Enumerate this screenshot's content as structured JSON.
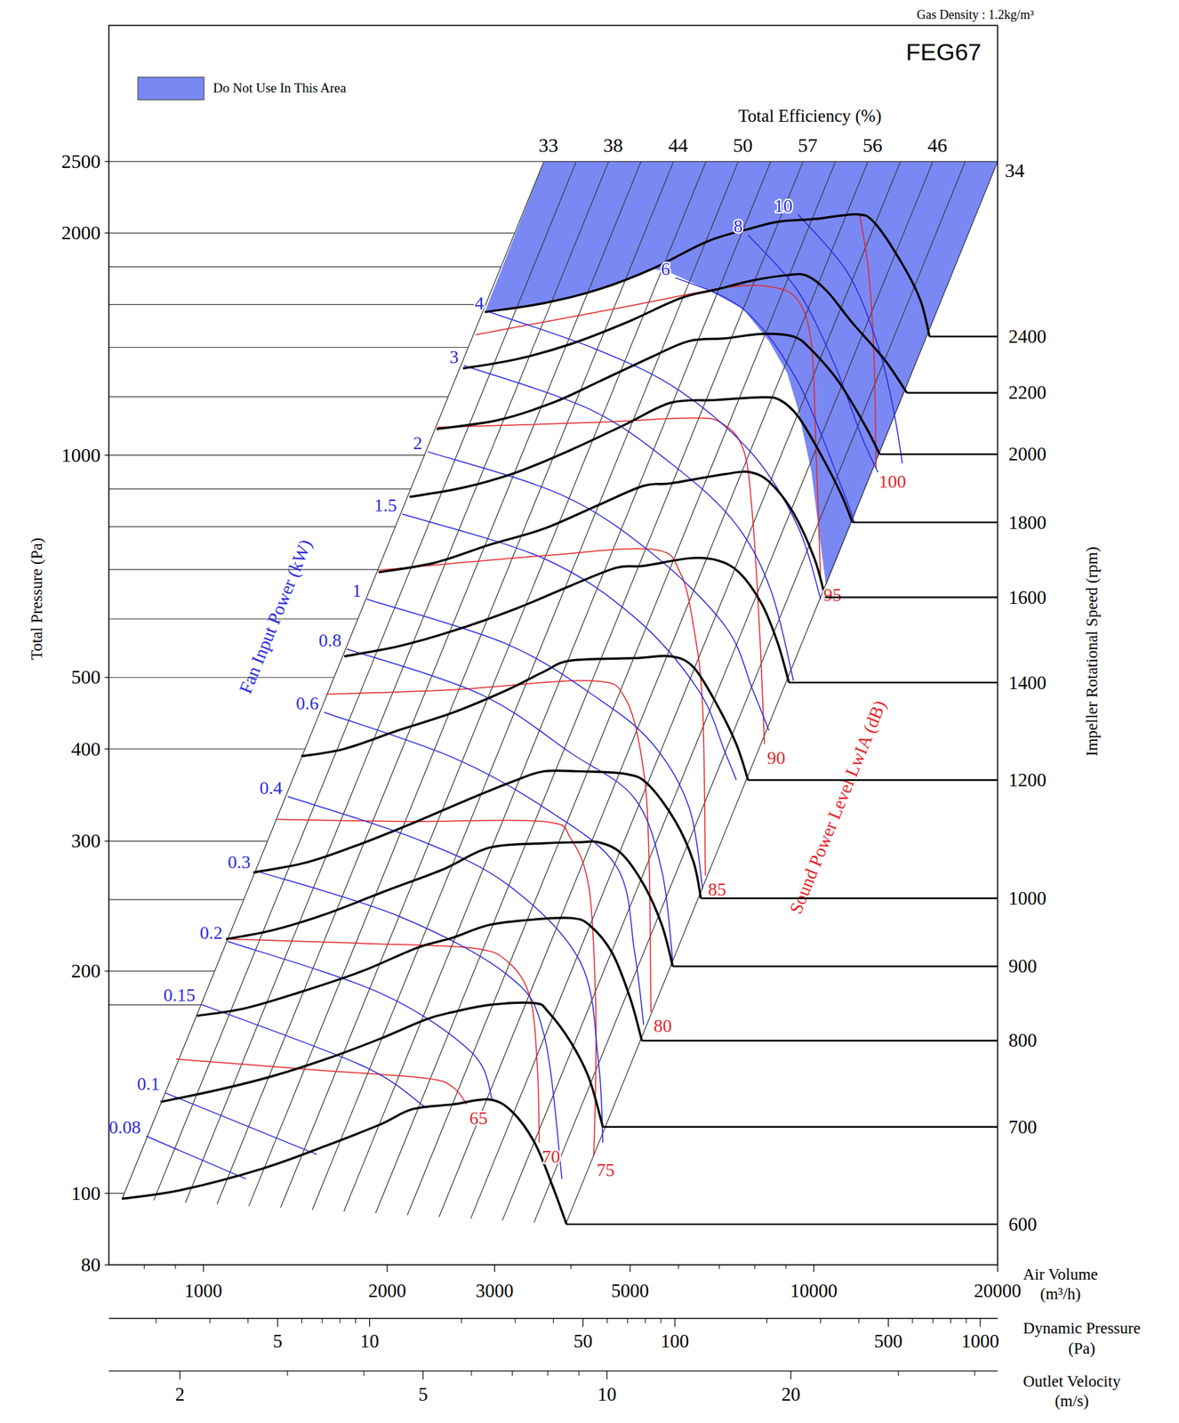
{
  "chart_data": {
    "type": "line",
    "title": "FEG67",
    "subtitle": "Gas Density : 1.2kg/m³",
    "x_label": "Air Volume (m³/h)",
    "y_label": "Total Pressure (Pa)",
    "y2_label": "Impeller Rotational Speed (rpm)",
    "log": true,
    "grid": true,
    "legend": "top-left",
    "xlim": [
      700,
      20000
    ],
    "xticks": [
      1000,
      2000,
      3000,
      5000,
      10000,
      20000
    ],
    "xminor": [
      800,
      900,
      4000,
      6000,
      7000,
      8000,
      9000
    ],
    "ylim": [
      80,
      2500
    ],
    "yticks": [
      80,
      100,
      200,
      300,
      400,
      500,
      1000,
      2000,
      2500
    ],
    "ygrid": [
      180,
      250,
      600,
      700,
      800,
      900,
      1200,
      1400,
      1600,
      1800
    ],
    "restricted_area": {
      "name": "Do Not Use In This Area",
      "color": "#6b7bf3",
      "x": [
        3611,
        20000,
        10474,
        10261,
        9915,
        9419,
        9040,
        8441,
        7670,
        6688,
        5833,
        5446,
        4436,
        3611,
        2891
      ],
      "y": [
        2500,
        2500,
        666,
        756,
        948,
        1155,
        1293,
        1428,
        1576,
        1677,
        1765,
        1790,
        1677,
        1607,
        1563
      ]
    },
    "efficiency_lines": {
      "label": "Total Efficiency (%)",
      "lines": [
        {
          "value": 33,
          "x": [
            3611,
            736
          ],
          "y": [
            2500,
            98.3
          ]
        },
        {
          "value": null,
          "x": [
            4081,
            829
          ],
          "y": [
            2500,
            97.8
          ]
        },
        {
          "value": 38,
          "x": [
            4611,
            935
          ],
          "y": [
            2500,
            97.2
          ]
        },
        {
          "value": null,
          "x": [
            5211,
            1053
          ],
          "y": [
            2500,
            96.7
          ]
        },
        {
          "value": 44,
          "x": [
            5890,
            1187
          ],
          "y": [
            2500,
            96.1
          ]
        },
        {
          "value": null,
          "x": [
            6657,
            1338
          ],
          "y": [
            2500,
            95.6
          ]
        },
        {
          "value": 50,
          "x": [
            7520,
            1508
          ],
          "y": [
            2500,
            95.0
          ]
        },
        {
          "value": null,
          "x": [
            8500,
            1699
          ],
          "y": [
            2500,
            94.5
          ]
        },
        {
          "value": 57,
          "x": [
            9603,
            1915
          ],
          "y": [
            2500,
            94.0
          ]
        },
        {
          "value": null,
          "x": [
            10850,
            2158
          ],
          "y": [
            2500,
            93.4
          ]
        },
        {
          "value": 56,
          "x": [
            12266,
            2432
          ],
          "y": [
            2500,
            92.9
          ]
        },
        {
          "value": null,
          "x": [
            13864,
            2741
          ],
          "y": [
            2500,
            92.4
          ]
        },
        {
          "value": 46,
          "x": [
            15666,
            3089
          ],
          "y": [
            2500,
            91.9
          ]
        },
        {
          "value": null,
          "x": [
            17703,
            3480
          ],
          "y": [
            2500,
            91.3
          ]
        },
        {
          "value": 34,
          "x": [
            20000,
            3922
          ],
          "y": [
            2500,
            90.8
          ]
        }
      ]
    },
    "series": [
      {
        "rpm": 600,
        "color": "#000000",
        "x": [
          735,
          918,
          1249,
          1588,
          1950,
          2198,
          2564,
          2941,
          3204,
          3490,
          3737,
          3934
        ],
        "values": [
          98.3,
          101,
          108,
          116,
          124,
          130,
          132,
          134,
          129,
          117,
          102,
          90.8
        ]
      },
      {
        "rpm": 700,
        "color": "#000000",
        "x": [
          851,
          1053,
          1293,
          1588,
          1950,
          2314,
          2564,
          2941,
          3490,
          3674,
          4002,
          4285,
          4512
        ],
        "values": [
          133,
          138,
          144,
          152,
          162,
          172,
          176,
          180,
          181,
          176,
          160,
          143,
          123
        ]
      },
      {
        "rpm": 800,
        "color": "#000000",
        "x": [
          976,
          1167,
          1432,
          1821,
          2236,
          2564,
          2941,
          3490,
          4002,
          4285,
          4669,
          5000,
          5227
        ],
        "values": [
          174,
          178,
          187,
          200,
          215,
          222,
          231,
          235,
          236,
          231,
          212,
          184,
          161
        ]
      },
      {
        "rpm": 900,
        "color": "#000000",
        "x": [
          1089,
          1293,
          1588,
          2017,
          2478,
          2941,
          3611,
          4141,
          4436,
          4831,
          5263,
          5636,
          5874
        ],
        "values": [
          221,
          227,
          239,
          258,
          275,
          294,
          298,
          299,
          299,
          289,
          262,
          231,
          203
        ]
      },
      {
        "rpm": 1000,
        "color": "#000000",
        "x": [
          1207,
          1483,
          1821,
          2236,
          2746,
          3258,
          3611,
          4141,
          4915,
          5354,
          5934,
          6353,
          6530
        ],
        "values": [
          272,
          281,
          298,
          319,
          343,
          363,
          373,
          373,
          370,
          358,
          319,
          281,
          251
        ]
      },
      {
        "rpm": 1200,
        "color": "#000000",
        "x": [
          1447,
          1701,
          2088,
          2564,
          3149,
          3611,
          4002,
          5086,
          5833,
          6353,
          6921,
          7464,
          7803
        ],
        "values": [
          391,
          400,
          424,
          448,
          481,
          509,
          527,
          531,
          534,
          516,
          461,
          406,
          363
        ]
      },
      {
        "rpm": 1400,
        "color": "#000000",
        "x": [
          1701,
          2088,
          2564,
          3258,
          4002,
          4750,
          5263,
          6247,
          6921,
          7542,
          8214,
          8737,
          9103
        ],
        "values": [
          534,
          551,
          578,
          620,
          666,
          704,
          708,
          725,
          721,
          694,
          629,
          555,
          492
        ]
      },
      {
        "rpm": 1600,
        "color": "#000000",
        "x": [
          1936,
          2394,
          2941,
          3611,
          4436,
          5263,
          5833,
          7163,
          7884,
          8500,
          9261,
          10018,
          10437
        ],
        "values": [
          694,
          715,
          756,
          795,
          856,
          909,
          916,
          943,
          948,
          916,
          835,
          725,
          642
        ]
      },
      {
        "rpm": 1800,
        "color": "#000000",
        "x": [
          2176,
          2653,
          3258,
          4002,
          4915,
          5833,
          6921,
          8214,
          8797,
          9419,
          10261,
          11100,
          11564
        ],
        "values": [
          878,
          903,
          948,
          1017,
          1101,
          1178,
          1188,
          1198,
          1188,
          1129,
          1003,
          883,
          811
        ]
      },
      {
        "rpm": 2000,
        "color": "#000000",
        "x": [
          2411,
          3043,
          3737,
          4436,
          5446,
          6247,
          7163,
          8214,
          9261,
          9915,
          10987,
          12175,
          12818
        ],
        "values": [
          1085,
          1116,
          1178,
          1257,
          1361,
          1428,
          1440,
          1460,
          1448,
          1388,
          1257,
          1091,
          1003
        ]
      },
      {
        "rpm": 2200,
        "color": "#000000",
        "x": [
          2662,
          3258,
          4002,
          4915,
          6037,
          6921,
          7939,
          9103,
          9748,
          10510,
          11564,
          13039,
          14206
        ],
        "values": [
          1311,
          1349,
          1415,
          1511,
          1631,
          1677,
          1725,
          1755,
          1750,
          1668,
          1511,
          1349,
          1215
        ]
      },
      {
        "rpm": 2400,
        "color": "#000000",
        "x": [
          2891,
          3611,
          4436,
          5446,
          6688,
          7939,
          8797,
          10086,
          11764,
          12600,
          13964,
          14951,
          15473
        ],
        "values": [
          1563,
          1607,
          1677,
          1790,
          1948,
          2032,
          2073,
          2090,
          2120,
          2061,
          1815,
          1621,
          1448
        ]
      }
    ],
    "power_lines": {
      "label": "Fan Input Power (kW)",
      "color": "#2b2bdc",
      "lines": [
        {
          "level": 0.08,
          "x": [
            806,
            1174
          ],
          "values": [
            119.5,
            104.6
          ]
        },
        {
          "level": 0.1,
          "x": [
            866,
            1534
          ],
          "values": [
            136.8,
            112.9
          ]
        },
        {
          "level": 0.15,
          "x": [
            990,
            1821,
            2298
          ],
          "values": [
            180.4,
            148.9,
            131.2
          ]
        },
        {
          "level": 0.2,
          "x": [
            1097,
            1950,
            2746,
            2972
          ],
          "values": [
            219.4,
            186.7,
            155.4,
            134.2
          ]
        },
        {
          "level": 0.3,
          "x": [
            1219,
            2088,
            3149,
            3611,
            3867
          ],
          "values": [
            273.4,
            237.4,
            197.6,
            164.4,
            104.6
          ]
        },
        {
          "level": 0.4,
          "x": [
            1375,
            2236,
            3149,
            4141,
            4436,
            4512
          ],
          "values": [
            344.8,
            301.9,
            262,
            206.1,
            151.1,
            117.1
          ]
        },
        {
          "level": 0.6,
          "x": [
            1577,
            2564,
            3611,
            4750,
            5086,
            5263
          ],
          "values": [
            448.3,
            389.3,
            333.3,
            277.3,
            212.1,
            169.1
          ]
        },
        {
          "level": 0.8,
          "x": [
            1718,
            2841,
            4002,
            5086,
            5636,
            5874
          ],
          "values": [
            546.3,
            474.6,
            394.8,
            342.8,
            273.4,
            206.1
          ]
        },
        {
          "level": 1,
          "x": [
            1852,
            3149,
            4436,
            5446,
            6247,
            6575
          ],
          "values": [
            638.1,
            554.2,
            467.7,
            406.1,
            333.3,
            258.4
          ]
        },
        {
          "level": 1.5,
          "x": [
            2117,
            3611,
            5086,
            6463,
            7163,
            7464
          ],
          "values": [
            832.3,
            724.6,
            603,
            481.1,
            394.8,
            363
          ]
        },
        {
          "level": 2,
          "x": [
            2330,
            3867,
            5446,
            7163,
            7939,
            8441
          ],
          "values": [
            1011,
            883,
            735,
            586.2,
            481,
            423.6
          ]
        },
        {
          "level": 3,
          "x": [
            2672,
            4285,
            5833,
            7413,
            8500,
            9261
          ],
          "values": [
            1323,
            1155,
            975,
            811,
            656.6,
            494.9
          ]
        },
        {
          "level": 4,
          "x": [
            2941,
            4436,
            6037,
            7939,
            9419,
            10261
          ],
          "values": [
            1563,
            1388,
            1222,
            1003,
            800,
            638.1
          ]
        },
        {
          "level": 6,
          "x": [
            5934,
            7670,
            9419,
            11170,
            11644
          ],
          "values": [
            1740,
            1576,
            1257,
            893,
            811
          ]
        },
        {
          "level": 8,
          "x": [
            7803,
            9419,
            10800,
            11969,
            12733
          ],
          "values": [
            1987,
            1668,
            1330,
            1061,
            948
          ]
        },
        {
          "level": 10,
          "x": [
            9419,
            11370,
            12733,
            13497,
            13964
          ],
          "values": [
            2120,
            1765,
            1408,
            1155,
            975
          ]
        }
      ]
    },
    "sound_lines": {
      "label": "Sound Power Level LwIA (dB)",
      "color": "#e3262b",
      "lines": [
        {
          "level": 65,
          "x": [
            902,
            1534,
            2314,
            2564,
            2699
          ],
          "values": [
            152,
            146.9,
            143.2,
            139.2,
            132
          ]
        },
        {
          "level": 70,
          "x": [
            1097,
            1821,
            2746,
            3149,
            3430,
            3526,
            3549
          ],
          "values": [
            221,
            218.1,
            215,
            206.1,
            184,
            146.9,
            117.1
          ]
        },
        {
          "level": 75,
          "x": [
            1315,
            2160,
            3611,
            4002,
            4285,
            4389,
            4389,
            4359
          ],
          "values": [
            321,
            319,
            319,
            301.9,
            258.4,
            184,
            139.2,
            112.3
          ]
        },
        {
          "level": 80,
          "x": [
            1588,
            2564,
            4285,
            4915,
            5263,
            5372,
            5409
          ],
          "values": [
            474.6,
            481,
            494.9,
            467.7,
            373,
            281,
            176
          ]
        },
        {
          "level": 85,
          "x": [
            1936,
            3611,
            5446,
            6037,
            6353,
            6575,
            6642
          ],
          "values": [
            698.6,
            731,
            745.6,
            694,
            586,
            454.8,
            269.5
          ]
        },
        {
          "level": 90,
          "x": [
            2418,
            4285,
            6247,
            7041,
            7670,
            7939,
            8157,
            8299
          ],
          "values": [
            1091,
            1107,
            1123,
            1107,
            1017,
            823,
            569.8,
            406.1
          ]
        },
        {
          "level": 95,
          "x": [
            2793,
            5086,
            7163,
            8500,
            9419,
            9915,
            10086,
            10261
          ],
          "values": [
            1456,
            1598,
            1687,
            1691,
            1621,
            1408,
            1003,
            675
          ]
        },
        {
          "level": 100,
          "x": [
            11888,
            12303,
            12558,
            12647
          ],
          "values": [
            2114,
            1765,
            1330,
            961
          ]
        }
      ]
    },
    "dynamic_pressure": {
      "label": "Dynamic Pressure (Pa)",
      "lim": [
        1.4,
        1140
      ],
      "ticks": [
        5,
        10,
        50,
        100,
        500,
        1000
      ],
      "minor_ticks": [
        2,
        3,
        4,
        6,
        7,
        8,
        9,
        20,
        30,
        40,
        60,
        70,
        80,
        90,
        200,
        300,
        400,
        600,
        700,
        800,
        900
      ]
    },
    "outlet_velocity": {
      "label": "Outlet Velocity (m/s)",
      "lim": [
        1.53,
        43.6
      ],
      "ticks": [
        2,
        5,
        10,
        20
      ],
      "minor_ticks": [
        3,
        4,
        6,
        7,
        8,
        9,
        30,
        40
      ]
    }
  }
}
